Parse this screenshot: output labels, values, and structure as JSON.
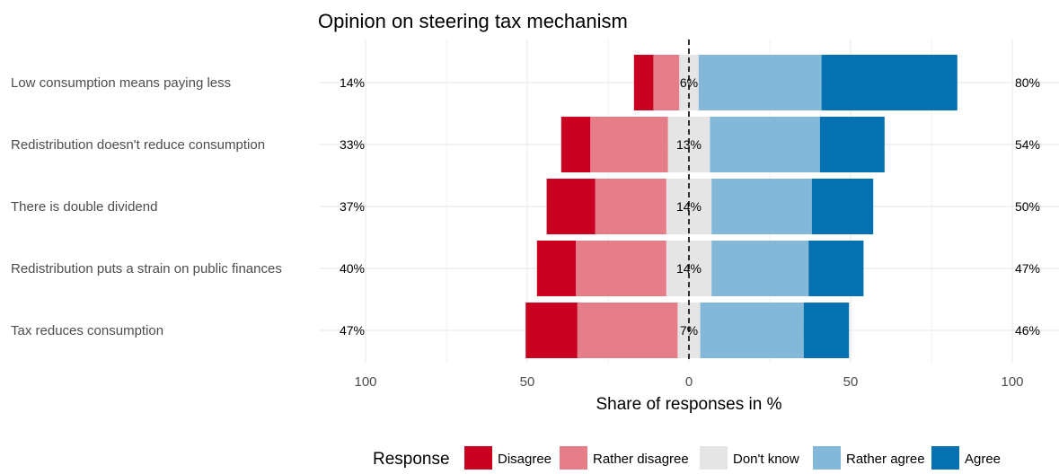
{
  "chart_data": {
    "type": "bar",
    "orientation": "horizontal",
    "stacked": "diverging",
    "title": "Opinion on steering tax mechanism",
    "xlabel": "Share of responses in %",
    "ylabel": "",
    "xlim": [
      -100,
      100
    ],
    "x_ticks": [
      {
        "value": -100,
        "label": "100"
      },
      {
        "value": -50,
        "label": "50"
      },
      {
        "value": 0,
        "label": "0"
      },
      {
        "value": 50,
        "label": "50"
      },
      {
        "value": 100,
        "label": "100"
      }
    ],
    "grid": true,
    "categories": [
      "Low consumption means paying less",
      "Redistribution doesn't reduce consumption",
      "There is double dividend",
      "Redistribution puts a strain on public finances",
      "Tax reduces consumption"
    ],
    "series": [
      {
        "name": "Disagree",
        "color": "#ca0020",
        "values": [
          6,
          9,
          15,
          12,
          16
        ]
      },
      {
        "name": "Rather disagree",
        "color": "#e67e8a",
        "values": [
          8,
          24,
          22,
          28,
          31
        ]
      },
      {
        "name": "Don't know",
        "color": "#e5e5e5",
        "values": [
          6,
          13,
          14,
          14,
          7
        ]
      },
      {
        "name": "Rather agree",
        "color": "#84b8d8",
        "values": [
          38,
          34,
          31,
          30,
          32
        ]
      },
      {
        "name": "Agree",
        "color": "#0571b0",
        "values": [
          42,
          20,
          19,
          17,
          14
        ]
      }
    ],
    "left_totals": [
      "14%",
      "33%",
      "37%",
      "40%",
      "47%"
    ],
    "neutral_labels": [
      "6%",
      "13%",
      "14%",
      "14%",
      "7%"
    ],
    "right_totals": [
      "80%",
      "54%",
      "50%",
      "47%",
      "46%"
    ],
    "legend": {
      "title": "Response",
      "position": "bottom",
      "items": [
        "Disagree",
        "Rather disagree",
        "Don't know",
        "Rather agree",
        "Agree"
      ]
    }
  }
}
